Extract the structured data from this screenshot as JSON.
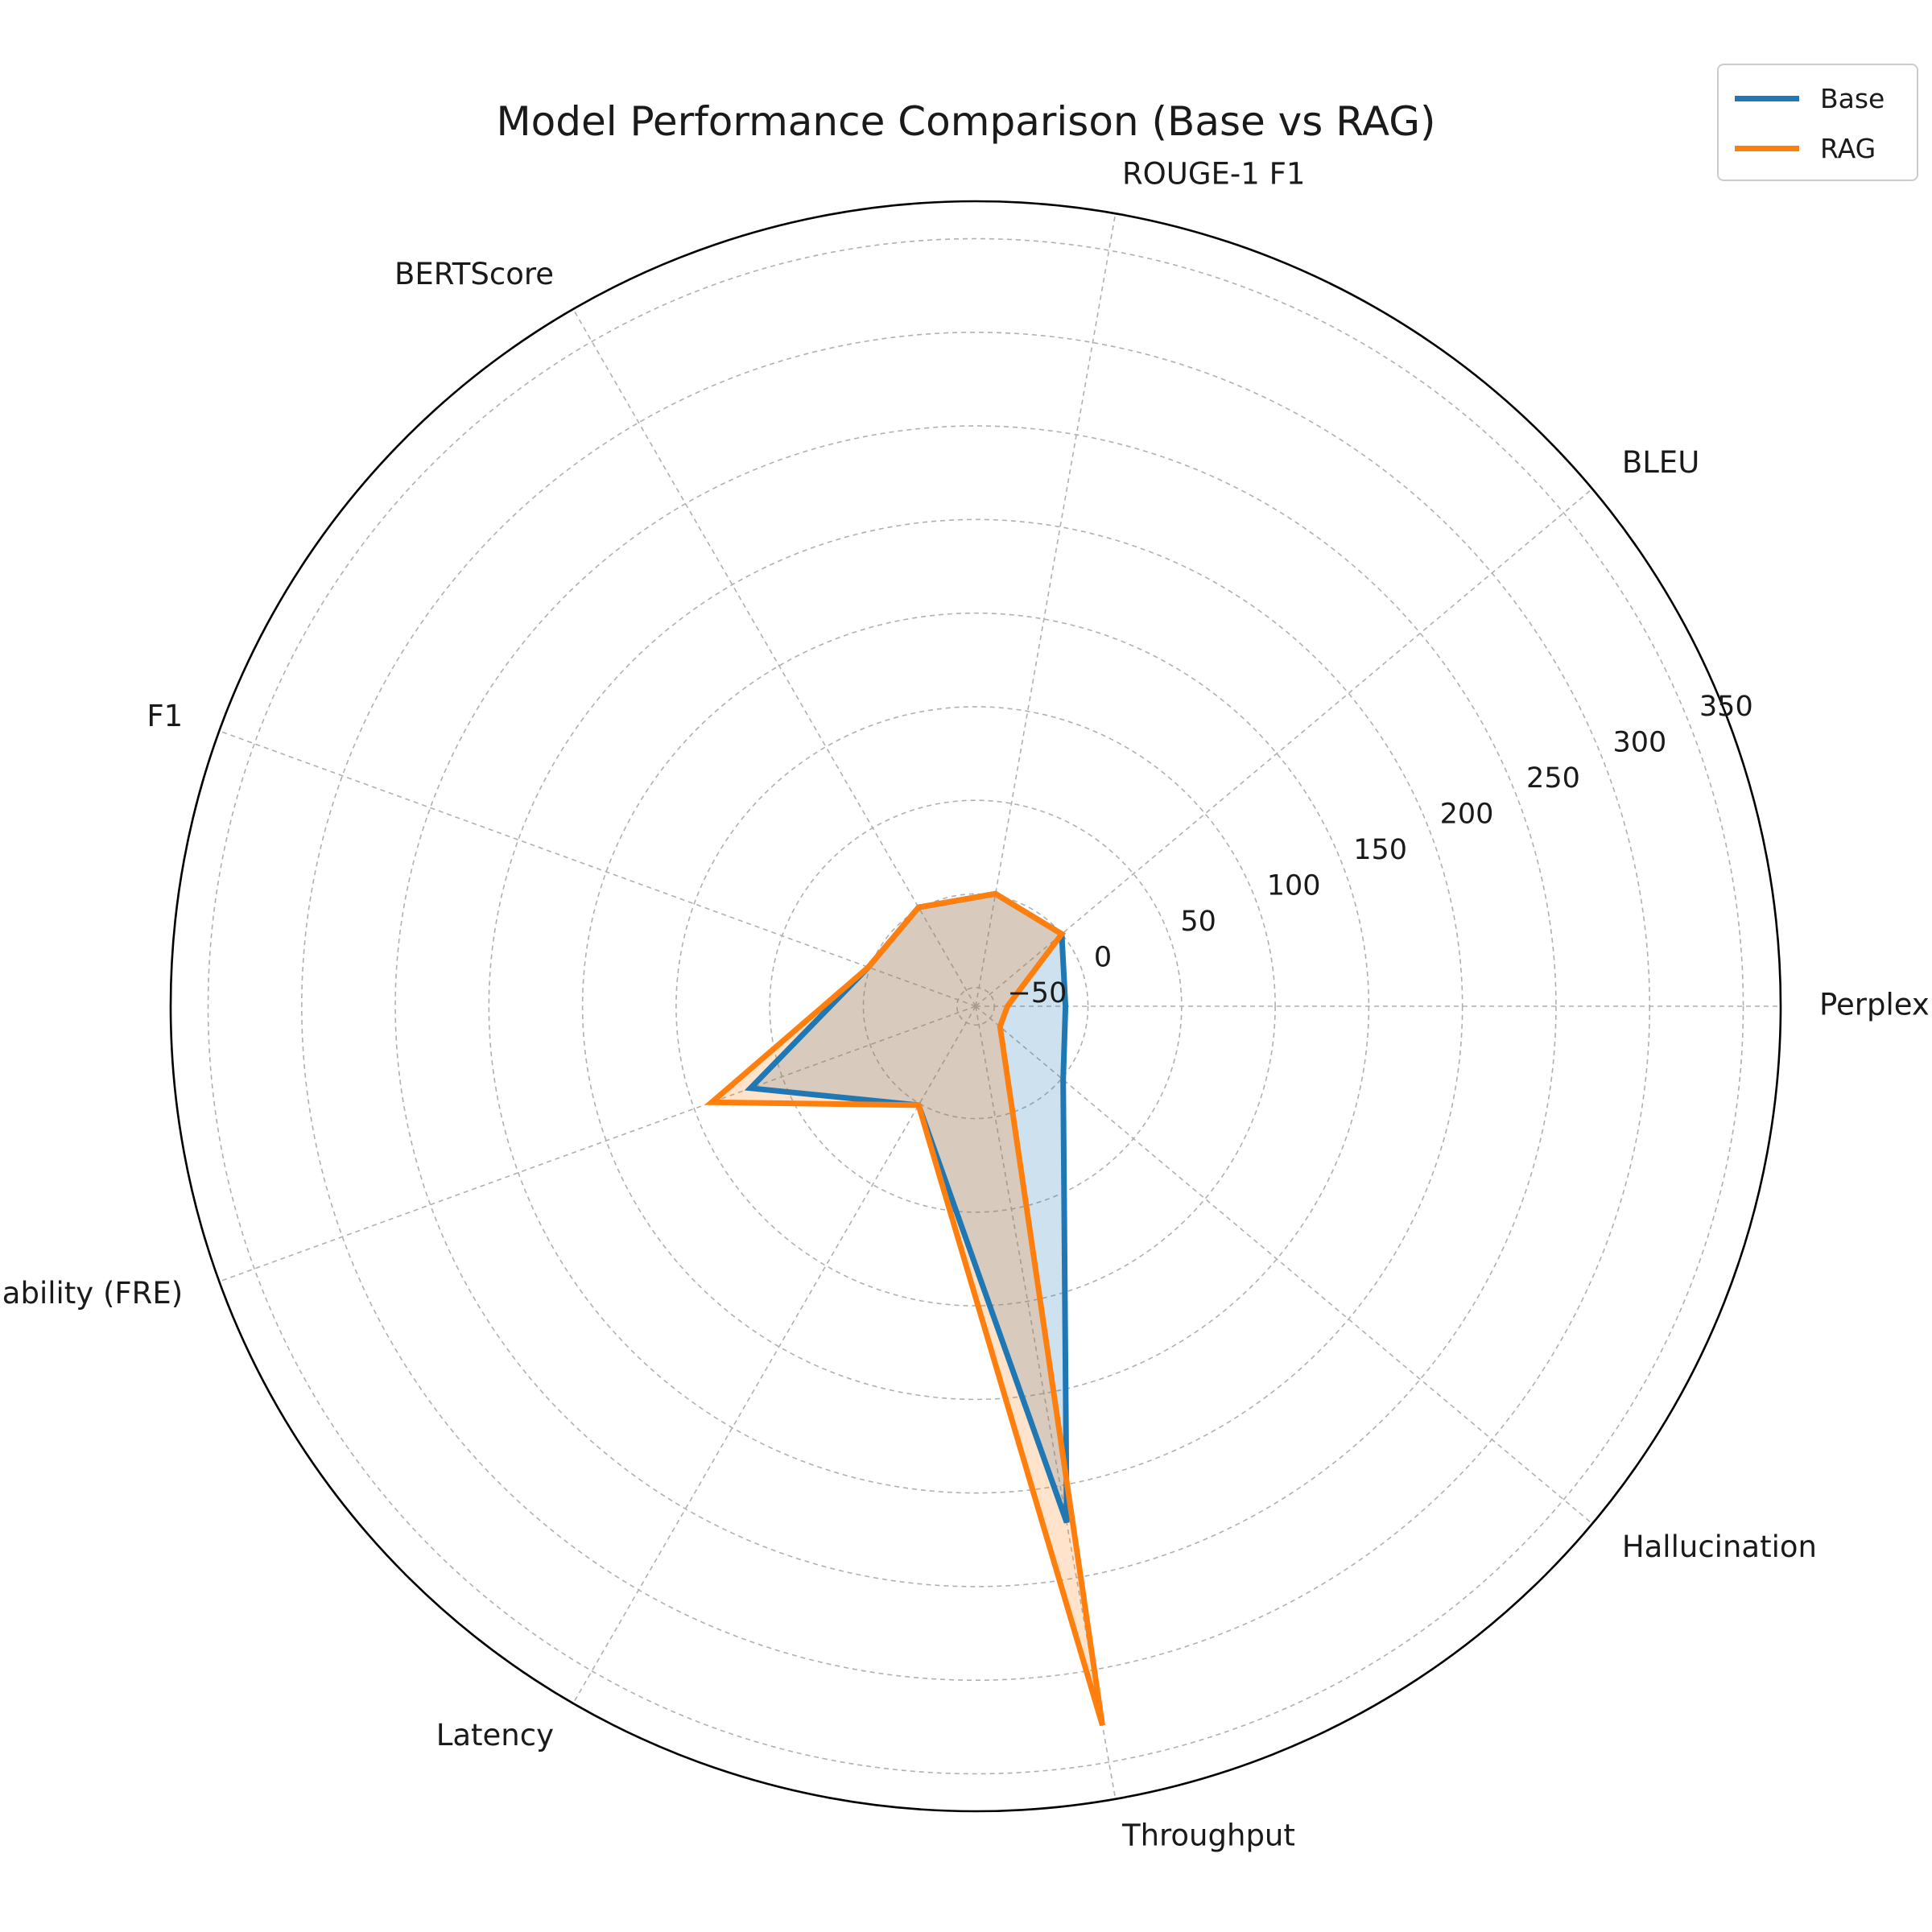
{
  "chart_data": {
    "type": "radar",
    "title": "Model Performance Comparison (Base vs RAG)",
    "axes": [
      "Perplexity",
      "BLEU",
      "ROUGE-1 F1",
      "BERTScore",
      "F1",
      "Readability (FRE)",
      "Latency",
      "Throughput",
      "Hallucination"
    ],
    "r_ticks": [
      -50,
      0,
      50,
      100,
      150,
      200,
      250,
      300,
      350
    ],
    "rlim": [
      -60,
      370
    ],
    "grid": true,
    "legend_position": "top-right",
    "series": [
      {
        "name": "Base",
        "color": "#1f77b4",
        "values": [
          -12,
          0,
          1,
          1,
          1,
          68,
          1,
          220,
          1
        ]
      },
      {
        "name": "RAG",
        "color": "#ff7f0e",
        "values": [
          -43,
          0,
          1,
          1,
          1,
          90,
          1,
          330,
          -43
        ]
      }
    ]
  }
}
